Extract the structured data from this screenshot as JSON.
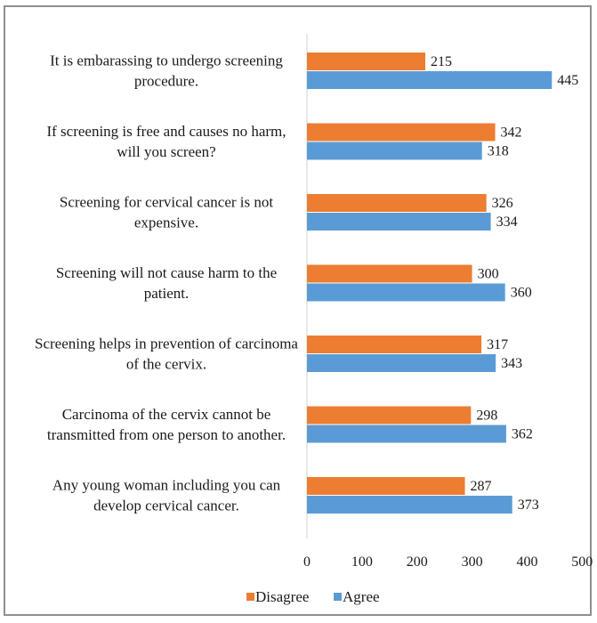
{
  "chart_data": {
    "type": "bar",
    "orientation": "horizontal",
    "categories": [
      [
        "It is embarassing to undergo screening",
        "procedure."
      ],
      [
        "If screening is free and causes no harm,",
        "will you screen?"
      ],
      [
        "Screening for cervical cancer is not",
        "expensive."
      ],
      [
        "Screening will not cause harm to the",
        "patient."
      ],
      [
        "Screening helps in prevention of carcinoma",
        "of the cervix."
      ],
      [
        "Carcinoma of the cervix cannot be",
        "transmitted from one person to another."
      ],
      [
        "Any young woman including you can",
        "develop cervical cancer."
      ]
    ],
    "series": [
      {
        "name": "Disagree",
        "color": "#ED7D31",
        "values": [
          215,
          342,
          326,
          300,
          317,
          298,
          287
        ]
      },
      {
        "name": "Agree",
        "color": "#5B9BD5",
        "values": [
          445,
          318,
          334,
          360,
          343,
          362,
          373
        ]
      }
    ],
    "xlim": [
      0,
      500
    ],
    "xticks": [
      "0",
      "100",
      "200",
      "300",
      "400",
      "500"
    ],
    "legend_position": "bottom",
    "grid": false
  }
}
